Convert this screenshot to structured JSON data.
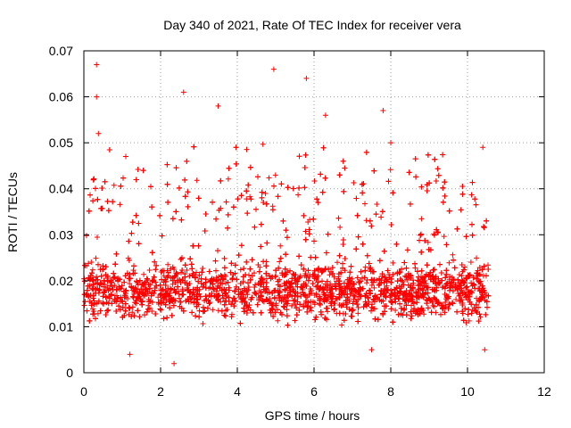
{
  "chart_data": {
    "type": "scatter",
    "title": "Day 340 of 2021, Rate Of TEC Index for receiver vera",
    "xlabel": "GPS time / hours",
    "ylabel": "ROTI / TECUs",
    "xlim": [
      0,
      12
    ],
    "ylim": [
      0,
      0.07
    ],
    "xticks": [
      0,
      2,
      4,
      6,
      8,
      10,
      12
    ],
    "xtick_labels": [
      "0",
      "2",
      "4",
      "6",
      "8",
      "10",
      "12"
    ],
    "yticks": [
      0,
      0.01,
      0.02,
      0.03,
      0.04,
      0.05,
      0.06,
      0.07
    ],
    "ytick_labels": [
      "0",
      "0.01",
      "0.02",
      "0.03",
      "0.04",
      "0.05",
      "0.06",
      "0.07"
    ],
    "grid": true,
    "marker": "+",
    "color": "#ff0000",
    "x_range_of_data": [
      0,
      10.55
    ],
    "typical_band": [
      0.008,
      0.025
    ],
    "notable_points": [
      {
        "x": 0.33,
        "y": 0.067
      },
      {
        "x": 0.33,
        "y": 0.06
      },
      {
        "x": 0.38,
        "y": 0.052
      },
      {
        "x": 2.6,
        "y": 0.061
      },
      {
        "x": 3.5,
        "y": 0.058
      },
      {
        "x": 4.95,
        "y": 0.066
      },
      {
        "x": 5.8,
        "y": 0.064
      },
      {
        "x": 6.3,
        "y": 0.056
      },
      {
        "x": 7.8,
        "y": 0.057
      },
      {
        "x": 8.0,
        "y": 0.05
      },
      {
        "x": 10.4,
        "y": 0.049
      },
      {
        "x": 1.2,
        "y": 0.004
      },
      {
        "x": 2.35,
        "y": 0.002
      },
      {
        "x": 7.5,
        "y": 0.005
      },
      {
        "x": 10.45,
        "y": 0.005
      }
    ]
  }
}
